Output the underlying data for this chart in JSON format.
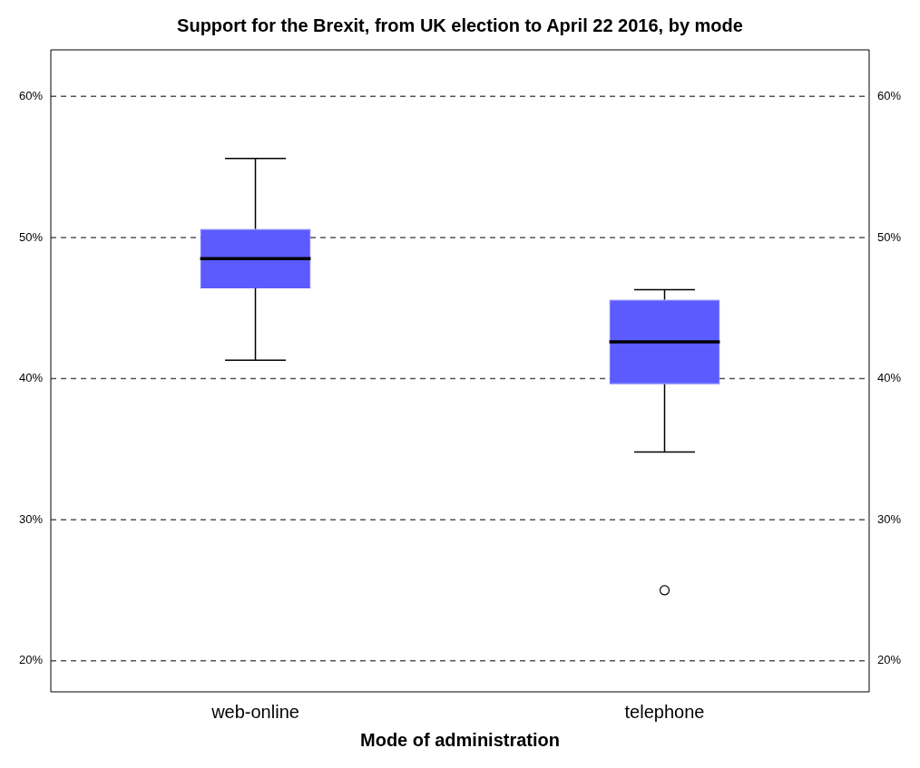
{
  "chart_data": {
    "type": "box",
    "title": "Support for the Brexit, from UK election to April 22 2016, by mode",
    "xlabel": "Mode of administration",
    "categories": [
      "web-online",
      "telephone"
    ],
    "boxes": [
      {
        "low": 41.3,
        "q1": 46.4,
        "median": 48.5,
        "q3": 50.6,
        "high": 55.6
      },
      {
        "low": 34.8,
        "q1": 39.6,
        "median": 42.6,
        "q3": 45.6,
        "high": 46.3,
        "outliers": [
          25.0
        ]
      }
    ],
    "color": "#5b5bff",
    "ylim": [
      17.8,
      63.3
    ],
    "yticks": [
      {
        "value": 20,
        "label": "20%"
      },
      {
        "value": 30,
        "label": "30%"
      },
      {
        "value": 40,
        "label": "40%"
      },
      {
        "value": 50,
        "label": "50%"
      },
      {
        "value": 60,
        "label": "60%"
      }
    ],
    "y2lim": [
      17.8,
      63.3
    ],
    "y2ticks": [
      {
        "value": 20,
        "label": "20%"
      },
      {
        "value": 30,
        "label": "30%"
      },
      {
        "value": 40,
        "label": "40%"
      },
      {
        "value": 50,
        "label": "50%"
      },
      {
        "value": 60,
        "label": "60%"
      }
    ],
    "grid": "y",
    "line_style": "dashed",
    "legend": false
  }
}
